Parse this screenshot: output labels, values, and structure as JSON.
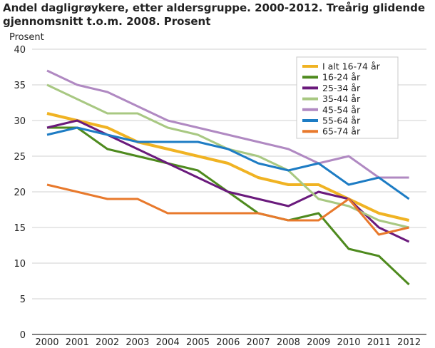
{
  "title_line1": "Andel dagligrøykere, etter aldersgruppe. 2000-2012. Treårig glidende",
  "title_line2": "gjennomsnitt t.o.m. 2008. Prosent",
  "chart_data": {
    "type": "line",
    "title": "Andel dagligrøykere, etter aldersgruppe. 2000-2012. Treårig glidende gjennomsnitt t.o.m. 2008. Prosent",
    "ylabel": "Prosent",
    "xlabel": "",
    "ylim": [
      0,
      40
    ],
    "yticks": [
      "0",
      "5",
      "10",
      "15",
      "20",
      "25",
      "30",
      "35",
      "40"
    ],
    "categories": [
      "2000",
      "2001",
      "2002",
      "2003",
      "2004",
      "2005",
      "2006",
      "2007",
      "2008",
      "2009",
      "2010",
      "2011",
      "2012"
    ],
    "grid": "horizontal",
    "legend_position": "top-right",
    "series": [
      {
        "name": "I alt 16-74 år",
        "color": "#f0b323",
        "values": [
          31,
          30,
          29,
          27,
          26,
          25,
          24,
          22,
          21,
          21,
          19,
          17,
          16
        ]
      },
      {
        "name": "16-24 år",
        "color": "#4e8a1e",
        "values": [
          29,
          29,
          26,
          25,
          24,
          23,
          20,
          17,
          16,
          17,
          12,
          11,
          7
        ]
      },
      {
        "name": "25-34 år",
        "color": "#6a1a7c",
        "values": [
          29,
          30,
          28,
          26,
          24,
          22,
          20,
          19,
          18,
          20,
          19,
          15,
          13
        ]
      },
      {
        "name": "35-44 år",
        "color": "#a8c882",
        "values": [
          35,
          33,
          31,
          31,
          29,
          28,
          26,
          25,
          23,
          19,
          18,
          16,
          15
        ]
      },
      {
        "name": "45-54 år",
        "color": "#b089c2",
        "values": [
          37,
          35,
          34,
          32,
          30,
          29,
          28,
          27,
          26,
          24,
          25,
          22,
          22
        ]
      },
      {
        "name": "55-64 år",
        "color": "#1d7cc4",
        "values": [
          28,
          29,
          28,
          27,
          27,
          27,
          26,
          24,
          23,
          24,
          21,
          22,
          19
        ]
      },
      {
        "name": "65-74 år",
        "color": "#e8792c",
        "values": [
          21,
          20,
          19,
          19,
          17,
          17,
          17,
          17,
          16,
          16,
          19,
          14,
          15
        ]
      }
    ]
  }
}
